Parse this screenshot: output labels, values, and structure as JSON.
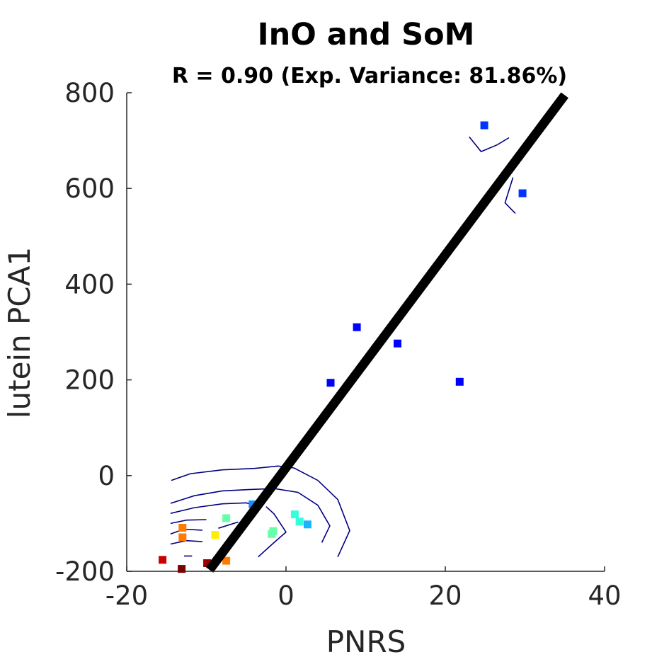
{
  "chart_data": {
    "type": "scatter",
    "title": "InO and SoM",
    "subtitle": "R = 0.90 (Exp. Variance: 81.86%)",
    "xlabel": "PNRS",
    "ylabel": "lutein PCA1",
    "xlim": [
      -20,
      40
    ],
    "ylim": [
      -200,
      800
    ],
    "xticks": [
      -20,
      0,
      20,
      40
    ],
    "yticks": [
      -200,
      0,
      200,
      400,
      600,
      800
    ],
    "xtick_labels": [
      "-20",
      "0",
      "20",
      "40"
    ],
    "ytick_labels": [
      "-200",
      "0",
      "200",
      "400",
      "600",
      "800"
    ],
    "grid": false,
    "points": [
      {
        "x": 24.9,
        "y": 732,
        "color": "#0033ff"
      },
      {
        "x": 29.7,
        "y": 590,
        "color": "#0033ff"
      },
      {
        "x": 8.9,
        "y": 310,
        "color": "#0000ff"
      },
      {
        "x": 14.0,
        "y": 276,
        "color": "#0000ff"
      },
      {
        "x": 5.6,
        "y": 194,
        "color": "#0000ff"
      },
      {
        "x": 21.8,
        "y": 196,
        "color": "#0000ff"
      },
      {
        "x": -4.2,
        "y": -60,
        "color": "#1a8cff"
      },
      {
        "x": 1.1,
        "y": -81,
        "color": "#33ffdd"
      },
      {
        "x": 1.7,
        "y": -96,
        "color": "#33ffdd"
      },
      {
        "x": 2.7,
        "y": -102,
        "color": "#1ab3ff"
      },
      {
        "x": -7.5,
        "y": -89,
        "color": "#66ffaa"
      },
      {
        "x": -1.6,
        "y": -116,
        "color": "#66ffaa"
      },
      {
        "x": -1.8,
        "y": -122,
        "color": "#66ffaa"
      },
      {
        "x": -13.0,
        "y": -109,
        "color": "#ff7a00"
      },
      {
        "x": -13.0,
        "y": -129,
        "color": "#ff7a00"
      },
      {
        "x": -8.9,
        "y": -124,
        "color": "#ffee00"
      },
      {
        "x": -15.5,
        "y": -176,
        "color": "#cc0000"
      },
      {
        "x": -13.1,
        "y": -195,
        "color": "#800000"
      },
      {
        "x": -9.9,
        "y": -183,
        "color": "#990000"
      },
      {
        "x": -7.5,
        "y": -178,
        "color": "#ff7a00"
      }
    ],
    "fit_line": {
      "x": [
        -9.6,
        35.0
      ],
      "y": [
        -197,
        795
      ],
      "color": "#000000"
    },
    "contours": [
      {
        "x": [
          -14.4,
          -12.0,
          -8.0,
          -4.0,
          -1.0,
          1.0,
          4.0,
          6.5,
          8.0,
          6.5
        ],
        "y": [
          -10,
          4,
          12,
          15,
          20,
          16,
          -10,
          -50,
          -115,
          -170
        ],
        "color": "#000080"
      },
      {
        "x": [
          -14.5,
          -11.5,
          -8.0,
          -4.5,
          -1.5,
          1.5,
          4.0,
          5.5,
          4.5
        ],
        "y": [
          -58,
          -42,
          -32,
          -29,
          -27,
          -35,
          -62,
          -105,
          -140
        ],
        "color": "#000080"
      },
      {
        "x": [
          -14.5,
          -11.5,
          -8.0,
          -5.0,
          -3.5
        ],
        "y": [
          -79,
          -67,
          -59,
          -57,
          -64
        ],
        "color": "#000080"
      },
      {
        "x": [
          -14.5,
          -12.5,
          -10.0
        ],
        "y": [
          -100,
          -93,
          -92
        ],
        "color": "#000080"
      },
      {
        "x": [
          -14.5,
          -12.8,
          -10.5
        ],
        "y": [
          -122,
          -112,
          -114
        ],
        "color": "#000080"
      },
      {
        "x": [
          -14.5,
          -12.5,
          -10.5
        ],
        "y": [
          -143,
          -136,
          -138
        ],
        "color": "#000080"
      },
      {
        "x": [
          -2.5,
          -1.5,
          0.0,
          -1.5,
          -3.5
        ],
        "y": [
          -65,
          -80,
          -118,
          -140,
          -170
        ],
        "color": "#000080"
      },
      {
        "x": [
          -8.5,
          -6.0
        ],
        "y": [
          -110,
          -97
        ],
        "color": "#000080"
      },
      {
        "x": [
          -12.8,
          -11.8
        ],
        "y": [
          -168,
          -168
        ],
        "color": "#000080"
      },
      {
        "x": [
          23.0,
          24.5,
          26.5,
          28.0
        ],
        "y": [
          708,
          677,
          691,
          706
        ],
        "color": "#000080"
      },
      {
        "x": [
          28.5,
          27.5,
          28.8
        ],
        "y": [
          623,
          570,
          548
        ],
        "color": "#000080"
      }
    ]
  }
}
